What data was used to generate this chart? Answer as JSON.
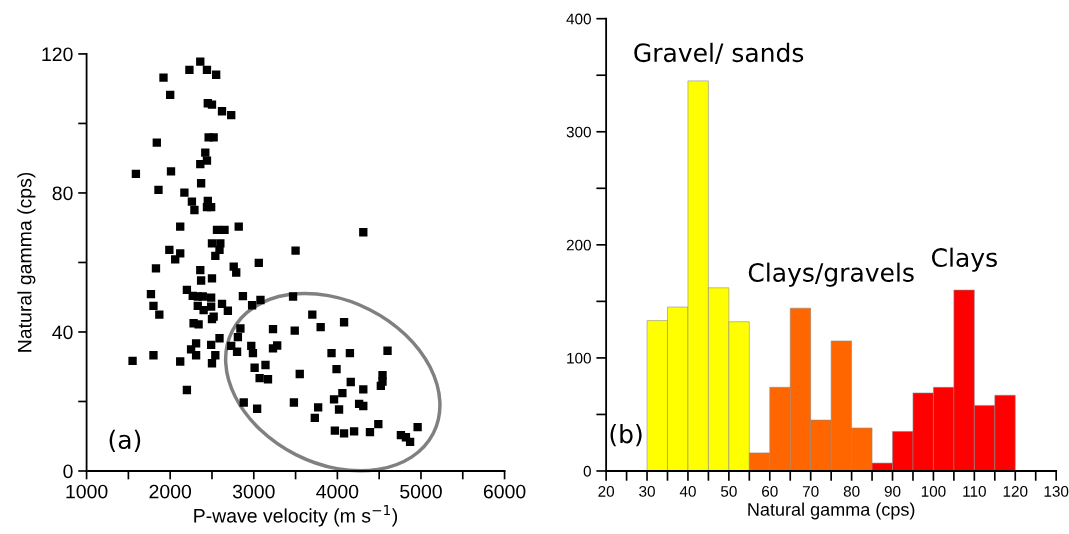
{
  "chart_data": [
    {
      "type": "scatter",
      "xlabel": "P-wave velocity (m s$^{−1}$)",
      "ylabel": "Natural gamma (cps)",
      "annotations": [
        "(a)"
      ],
      "xlim": [
        1000,
        6000
      ],
      "xticks": [
        1000,
        {
          "value": 1500,
          "label": null
        },
        2000,
        {
          "value": 2500,
          "label": null
        },
        3000,
        {
          "value": 3500,
          "label": null
        },
        4000,
        {
          "value": 4500,
          "label": null
        },
        5000,
        {
          "value": 5500,
          "label": null
        },
        6000
      ],
      "ylim": [
        0,
        120
      ],
      "yticks": [
        0,
        {
          "value": 20,
          "label": null
        },
        40,
        {
          "value": 60,
          "label": null
        },
        80,
        {
          "value": 100,
          "label": null
        },
        120
      ],
      "grid": false,
      "legend": false,
      "series": [
        {
          "type": "scatter",
          "marker": "square",
          "color": "#000000",
          "x": [
            2360,
            2230,
            2440,
            2550,
            1920,
            2000,
            2450,
            2500,
            2620,
            2730,
            1840,
            2460,
            2520,
            2420,
            2440,
            2360,
            1590,
            2010,
            1860,
            2370,
            2170,
            2260,
            2290,
            2450,
            2440,
            2490,
            2120,
            2560,
            2650,
            2820,
            1990,
            2120,
            2060,
            2500,
            2600,
            2590,
            2540,
            1830,
            2760,
            2790,
            3060,
            3500,
            2360,
            2370,
            2500,
            1770,
            1800,
            1870,
            2200,
            2270,
            2330,
            2390,
            2490,
            2330,
            2400,
            2490,
            2520,
            2500,
            2620,
            2690,
            2870,
            2980,
            3080,
            3470,
            2280,
            2340,
            2840,
            3230,
            3490,
            3700,
            2810,
            2970,
            2310,
            2490,
            2590,
            2730,
            2800,
            2250,
            2310,
            2540,
            2500,
            3230,
            3280,
            2990,
            1550,
            1800,
            2120,
            3010,
            3140,
            3070,
            3170,
            3550,
            2200,
            2880,
            3040,
            3480,
            3770,
            3730,
            4310,
            3800,
            4080,
            3930,
            4150,
            4600,
            3990,
            4160,
            4310,
            4540,
            4540,
            4520,
            4060,
            3960,
            4260,
            4310,
            4020,
            3970,
            4080,
            4200,
            4390,
            4490,
            4760,
            4820,
            4870,
            4960
          ],
          "values": [
            117.8,
            115.4,
            115.4,
            114,
            113.2,
            108.2,
            105.8,
            105.4,
            103.5,
            102.4,
            94.5,
            96,
            96,
            91.6,
            89.3,
            88.3,
            85.5,
            86.2,
            80.9,
            82.8,
            80.1,
            77.5,
            75.1,
            77.7,
            75.9,
            75.9,
            70.3,
            69.4,
            69.4,
            70.3,
            63.6,
            62.6,
            60.9,
            65.5,
            65.5,
            63.6,
            61.9,
            58.3,
            58.8,
            57.1,
            59.9,
            63.4,
            57.8,
            54.8,
            55.4,
            50.9,
            47.5,
            45,
            52.1,
            50.4,
            50.2,
            50.2,
            49.9,
            47.5,
            46.3,
            47.3,
            44.4,
            43.7,
            48.1,
            46.1,
            50.3,
            47.7,
            49.2,
            50.2,
            42.5,
            42.2,
            41,
            40.8,
            40.4,
            45,
            38.5,
            36,
            36.7,
            36.3,
            38.2,
            36,
            34.3,
            35,
            33.3,
            33.3,
            31,
            35.3,
            36.1,
            33.9,
            31.7,
            33.3,
            31.5,
            29.7,
            30.5,
            26.7,
            26.4,
            27.9,
            23.3,
            19.7,
            17.9,
            19.7,
            18.3,
            15.3,
            68.7,
            41.4,
            42.8,
            33.9,
            33.9,
            34.6,
            29.3,
            25.6,
            23.5,
            27.6,
            25.7,
            24.5,
            22.4,
            20.6,
            19.3,
            18.7,
            17.7,
            11.6,
            10.8,
            11.4,
            11.2,
            13.5,
            10.3,
            9.7,
            8.4,
            12.6
          ]
        }
      ]
    },
    {
      "type": "histogram",
      "xlabel": "Natural gamma (cps)",
      "annotations": [
        "(b)",
        "Gravel/ sands",
        "Clays/gravels",
        "Clays"
      ],
      "bins": [
        30,
        35,
        40,
        45,
        50,
        55,
        60,
        65,
        70,
        75,
        80,
        85,
        90,
        95,
        100,
        105,
        110,
        115,
        120
      ],
      "values": [
        133,
        145,
        345,
        162,
        132,
        16,
        74,
        144,
        45,
        115,
        38,
        7,
        35,
        69,
        74,
        160,
        58,
        67
      ],
      "colors": [
        "#ffff00",
        "#ffff00",
        "#ffff00",
        "#ffff00",
        "#ffff00",
        "#ff6600",
        "#ff6600",
        "#ff6600",
        "#ff6600",
        "#ff6600",
        "#ff6600",
        "#ff0000",
        "#ff0000",
        "#ff0000",
        "#ff0000",
        "#ff0000",
        "#ff0000",
        "#ff0000"
      ],
      "xlim": [
        20,
        130
      ],
      "xticks": [
        20,
        {
          "value": 25,
          "label": null
        },
        30,
        {
          "value": 35,
          "label": null
        },
        40,
        {
          "value": 45,
          "label": null
        },
        50,
        {
          "value": 55,
          "label": null
        },
        60,
        {
          "value": 65,
          "label": null
        },
        70,
        {
          "value": 75,
          "label": null
        },
        80,
        {
          "value": 85,
          "label": null
        },
        90,
        {
          "value": 95,
          "label": null
        },
        100,
        {
          "value": 105,
          "label": null
        },
        110,
        {
          "value": 115,
          "label": null
        },
        120,
        {
          "value": 125,
          "label": null
        },
        130
      ],
      "ylim": [
        0,
        400
      ],
      "yticks": [
        0,
        {
          "value": 50,
          "label": null
        },
        100,
        {
          "value": 150,
          "label": null
        },
        200,
        {
          "value": 250,
          "label": null
        },
        300,
        {
          "value": 350,
          "label": null
        },
        400
      ],
      "grid": false,
      "legend": false
    }
  ]
}
